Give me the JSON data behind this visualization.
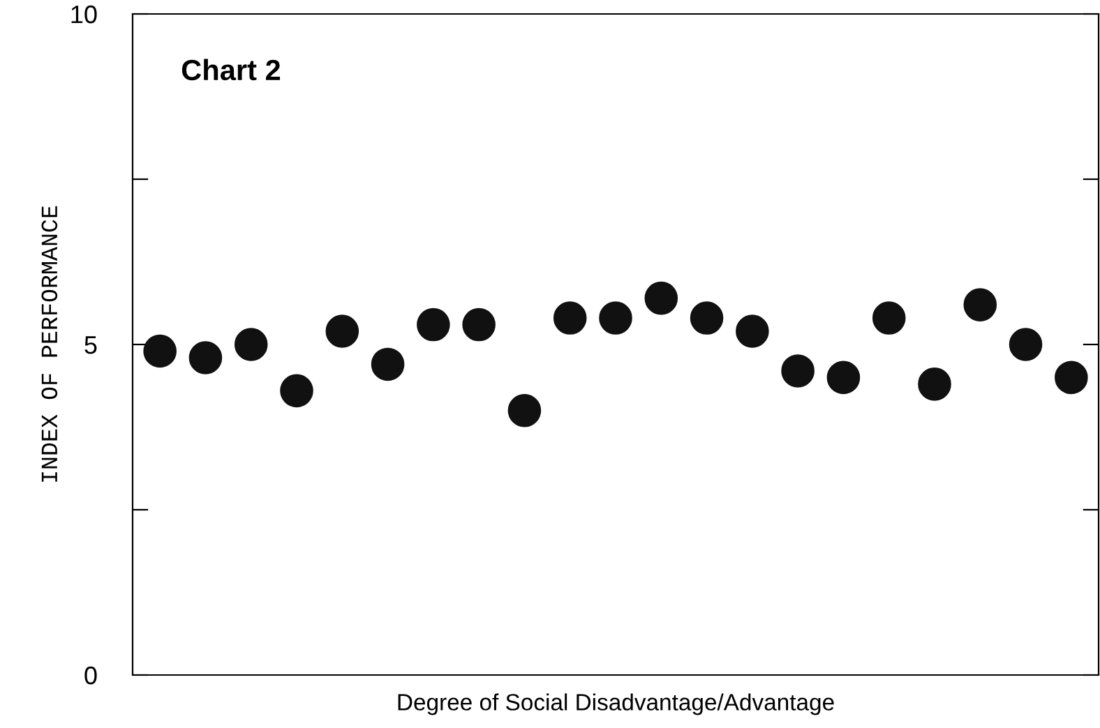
{
  "chart_data": {
    "type": "scatter",
    "xlabel": "Degree of Social Disadvantage/Advantage",
    "ylabel": "INDEX OF PERFORMANCE",
    "annotations": [
      "Chart 2"
    ],
    "categories": [
      null,
      null,
      null,
      null,
      null,
      null,
      null,
      null,
      null,
      null,
      null,
      null,
      null,
      null,
      null,
      null,
      null,
      null,
      null,
      null,
      null
    ],
    "series": [
      {
        "color": "#111111",
        "values": [
          4.9,
          4.8,
          5.0,
          4.3,
          5.2,
          4.7,
          5.3,
          5.3,
          4.0,
          5.4,
          5.4,
          5.7,
          5.4,
          5.2,
          4.6,
          4.5,
          5.4,
          4.4,
          5.6,
          5.0,
          4.5
        ]
      }
    ],
    "ylim": [
      0,
      10
    ],
    "yticks": [
      0,
      {
        "value": 2.5,
        "label": null
      },
      5,
      {
        "value": 7.5,
        "label": null
      },
      10
    ],
    "marker": "circle",
    "grid": false,
    "legend": false
  }
}
